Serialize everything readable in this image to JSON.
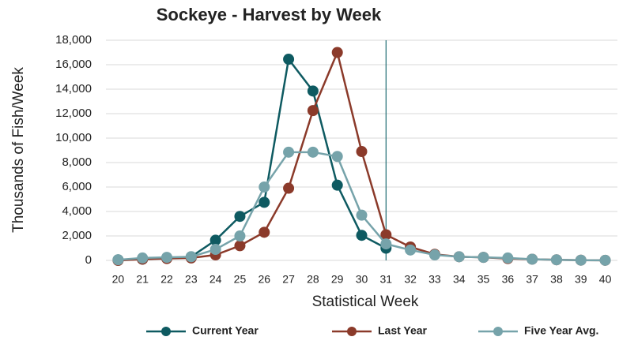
{
  "chart_data": {
    "type": "line",
    "title": "Sockeye - Harvest by Week",
    "x_label": "Statistical Week",
    "y_label": "Thousands of Fish/Week",
    "x": [
      20,
      21,
      22,
      23,
      24,
      25,
      26,
      27,
      28,
      29,
      30,
      31,
      32,
      33,
      34,
      35,
      36,
      37,
      38,
      39,
      40
    ],
    "xlim": [
      19.5,
      40.5
    ],
    "xticks": [
      20,
      21,
      22,
      23,
      24,
      25,
      26,
      27,
      28,
      29,
      30,
      31,
      32,
      33,
      34,
      35,
      36,
      37,
      38,
      39,
      40
    ],
    "ylim": [
      0,
      18000
    ],
    "yticks": [
      0,
      {
        "value": 2000,
        "label": "2,000"
      },
      {
        "value": 4000,
        "label": "4,000"
      },
      {
        "value": 6000,
        "label": "6,000"
      },
      {
        "value": 8000,
        "label": "8,000"
      },
      {
        "value": 10000,
        "label": "10,000"
      },
      {
        "value": 12000,
        "label": "12,000"
      },
      {
        "value": 14000,
        "label": "14,000"
      },
      {
        "value": 16000,
        "label": "16,000"
      },
      {
        "value": 18000,
        "label": "18,000"
      }
    ],
    "grid": true,
    "legend": "bottom",
    "vline": 31,
    "vline_color": "#1d6b72",
    "series": [
      {
        "name": "Current Year",
        "color": "#0e5a61",
        "values": [
          50,
          100,
          200,
          300,
          1650,
          3600,
          4750,
          16450,
          13850,
          6150,
          2050,
          1000,
          null,
          null,
          null,
          null,
          null,
          null,
          null,
          null,
          null
        ]
      },
      {
        "name": "Last Year",
        "color": "#8b3a2a",
        "values": [
          0,
          100,
          150,
          200,
          450,
          1200,
          2300,
          5900,
          12250,
          17000,
          8900,
          2100,
          1100,
          500,
          300,
          250,
          150,
          100,
          50,
          20,
          10
        ]
      },
      {
        "name": "Five Year Avg.",
        "color": "#76a3aa",
        "values": [
          50,
          200,
          250,
          300,
          900,
          2000,
          6000,
          8850,
          8850,
          8500,
          3700,
          1350,
          850,
          450,
          300,
          250,
          200,
          100,
          50,
          20,
          10
        ]
      }
    ]
  }
}
